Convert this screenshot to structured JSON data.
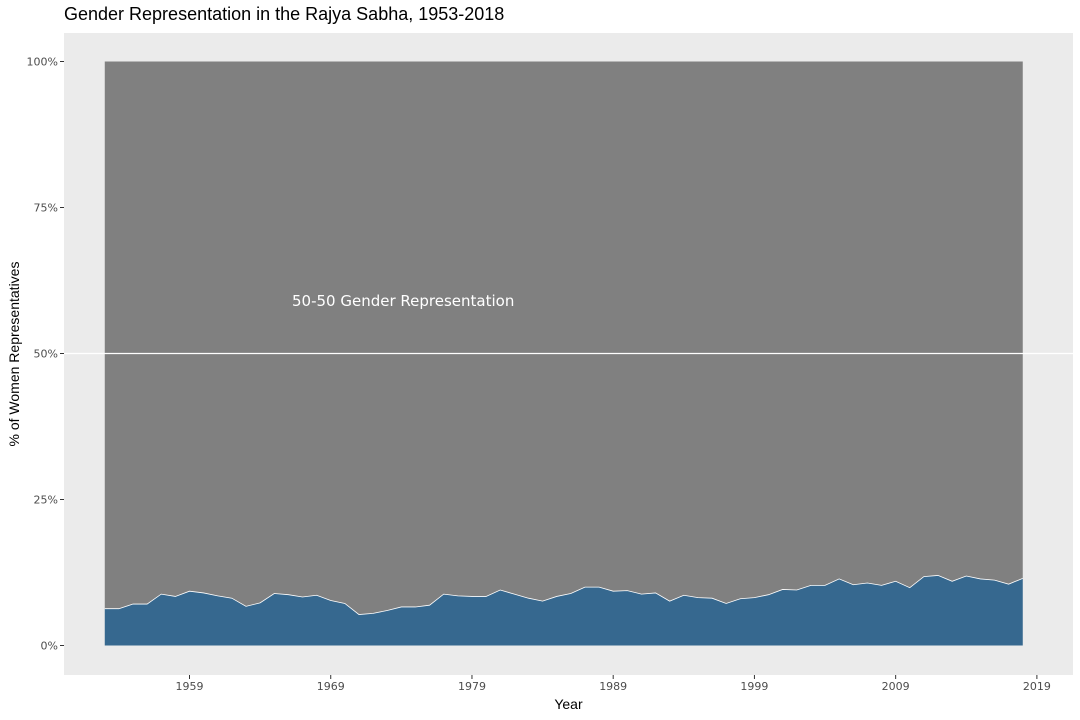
{
  "chart_data": {
    "type": "area",
    "title": "Gender Representation in the Rajya Sabha, 1953-2018",
    "xlabel": "Year",
    "ylabel": "% of Women Representatives",
    "xlim": [
      1953,
      2018
    ],
    "ylim": [
      0,
      100
    ],
    "x_ticks": [
      1959,
      1969,
      1979,
      1989,
      1999,
      2009,
      2019
    ],
    "y_ticks": [
      0,
      25,
      50,
      75,
      100
    ],
    "y_tick_labels": [
      "0%",
      "25%",
      "50%",
      "75%",
      "100%"
    ],
    "reference_line": {
      "y": 50,
      "label": "50-50 Gender Representation",
      "color": "#ffffff"
    },
    "legend": "none",
    "grid": false,
    "colors": {
      "women": "#36688f",
      "men": "#808080",
      "panel": "#ebebeb",
      "outline": "#ffffff"
    },
    "series": [
      {
        "color": "#36688f",
        "x": [
          1953,
          1954,
          1955,
          1956,
          1957,
          1958,
          1959,
          1960,
          1961,
          1962,
          1963,
          1964,
          1965,
          1966,
          1967,
          1968,
          1969,
          1970,
          1971,
          1972,
          1973,
          1974,
          1975,
          1976,
          1977,
          1978,
          1979,
          1980,
          1981,
          1982,
          1983,
          1984,
          1985,
          1986,
          1987,
          1988,
          1989,
          1990,
          1991,
          1992,
          1993,
          1994,
          1995,
          1996,
          1997,
          1998,
          1999,
          2000,
          2001,
          2002,
          2003,
          2004,
          2005,
          2006,
          2007,
          2008,
          2009,
          2010,
          2011,
          2012,
          2013,
          2014,
          2015,
          2016,
          2017,
          2018
        ],
        "values": [
          6.3,
          6.3,
          7.1,
          7.1,
          8.8,
          8.4,
          9.3,
          9.0,
          8.5,
          8.1,
          6.7,
          7.3,
          8.9,
          8.7,
          8.3,
          8.6,
          7.7,
          7.2,
          5.3,
          5.5,
          6.0,
          6.6,
          6.6,
          6.9,
          8.8,
          8.5,
          8.4,
          8.4,
          9.5,
          8.8,
          8.1,
          7.6,
          8.4,
          8.9,
          10.0,
          10.0,
          9.3,
          9.4,
          8.8,
          9.0,
          7.6,
          8.6,
          8.2,
          8.1,
          7.2,
          8.0,
          8.2,
          8.7,
          9.6,
          9.5,
          10.3,
          10.3,
          11.4,
          10.4,
          10.7,
          10.3,
          11.0,
          9.9,
          11.8,
          12.0,
          11.0,
          11.9,
          11.4,
          11.2,
          10.5,
          11.5
        ]
      }
    ]
  }
}
